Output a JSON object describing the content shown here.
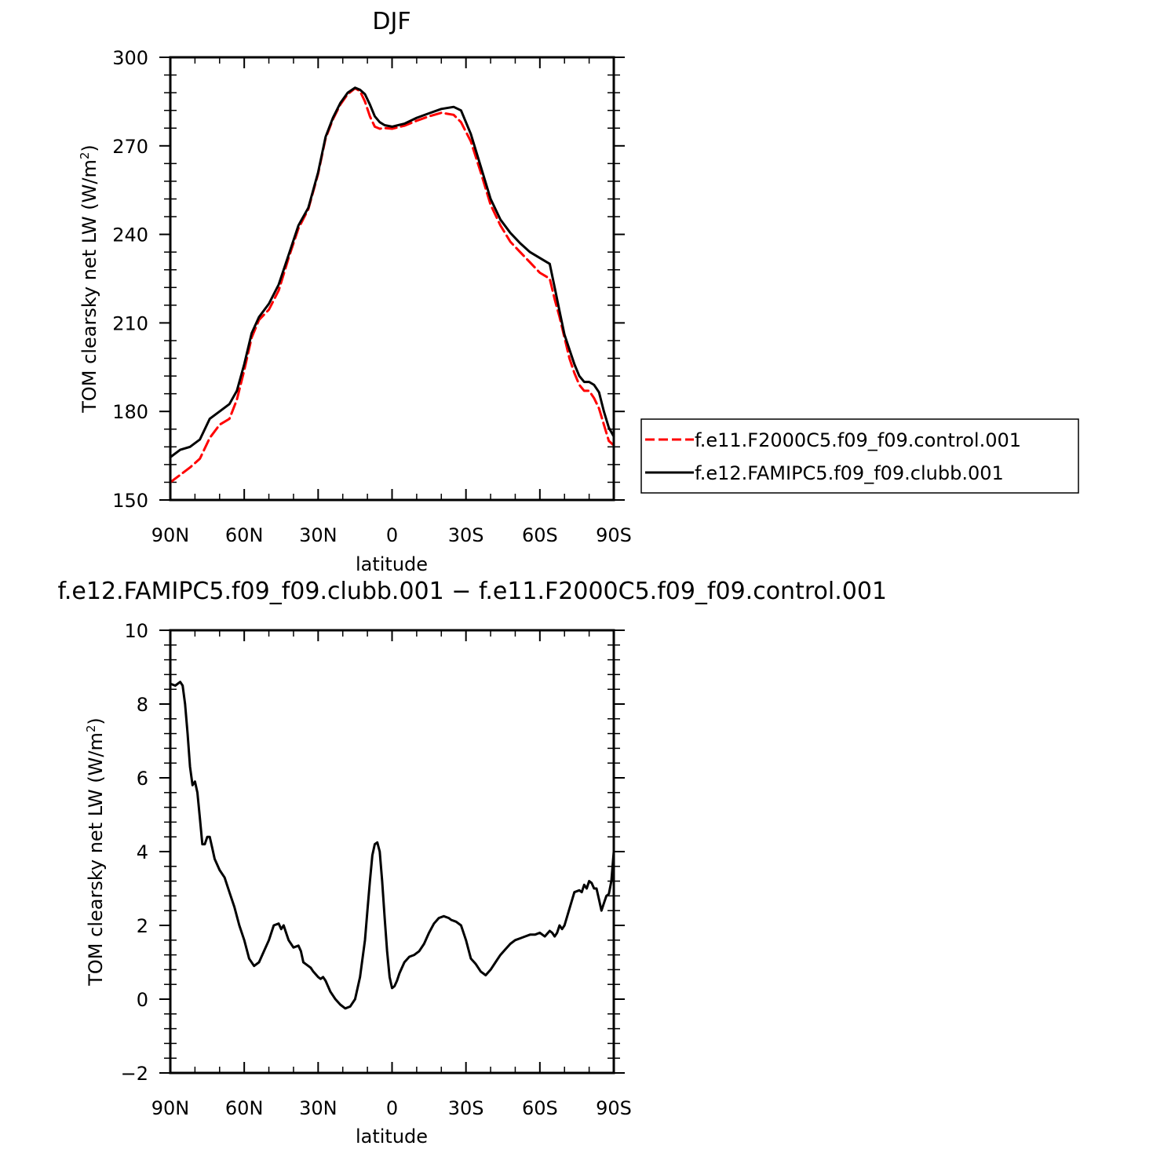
{
  "chart_data": [
    {
      "type": "line",
      "title": "DJF",
      "xlabel": "latitude",
      "ylabel": "TOM clearsky net LW (W/m²)",
      "xlim": [
        90,
        -90
      ],
      "ylim": [
        150,
        300
      ],
      "xticks": [
        90,
        60,
        30,
        0,
        -30,
        -60,
        -90
      ],
      "xticklabels": [
        "90N",
        "60N",
        "30N",
        "0",
        "30S",
        "60S",
        "90S"
      ],
      "yticks": [
        150,
        180,
        210,
        240,
        270,
        300
      ],
      "yticklabels": [
        "150",
        "180",
        "210",
        "240",
        "270",
        "300"
      ],
      "legend_position": "right",
      "series": [
        {
          "name": "f.e11.F2000C5.f09_f09.control.001",
          "color": "#ff0000",
          "dash": "dashed",
          "x": [
            90,
            86,
            82,
            78,
            74,
            70,
            66,
            63,
            60,
            57,
            54,
            50,
            46,
            42,
            38,
            34,
            30,
            27,
            24,
            21,
            18,
            15,
            13,
            11,
            9,
            7,
            5,
            3,
            0,
            -5,
            -10,
            -15,
            -20,
            -25,
            -28,
            -32,
            -36,
            -40,
            -44,
            -48,
            -52,
            -56,
            -60,
            -64,
            -66,
            -68,
            -70,
            -72,
            -74,
            -76,
            -78,
            -80,
            -82,
            -84,
            -86,
            -88,
            -90
          ],
          "y": [
            156,
            158.5,
            161,
            164,
            171,
            175.5,
            177.5,
            184,
            194,
            205,
            211,
            214.5,
            221,
            232,
            242,
            248.5,
            260.5,
            272.5,
            279,
            284,
            287.5,
            289.5,
            288.5,
            285,
            280,
            276.5,
            275.8,
            276,
            275.8,
            276.8,
            278.5,
            280,
            281.2,
            280.5,
            278,
            271.5,
            261,
            250,
            243,
            237.5,
            234,
            230.5,
            227,
            225,
            218,
            212,
            205,
            198,
            193,
            189,
            187,
            187,
            184.5,
            181,
            175.5,
            170,
            168.5
          ]
        },
        {
          "name": "f.e12.FAMIPC5.f09_f09.clubb.001",
          "color": "#000000",
          "dash": "solid",
          "x": [
            90,
            86,
            82,
            78,
            74,
            70,
            66,
            63,
            60,
            57,
            54,
            50,
            46,
            42,
            38,
            34,
            30,
            27,
            24,
            21,
            18,
            15,
            13,
            11,
            9,
            7,
            5,
            3,
            0,
            -5,
            -10,
            -15,
            -20,
            -25,
            -28,
            -32,
            -36,
            -40,
            -44,
            -48,
            -52,
            -56,
            -60,
            -64,
            -66,
            -68,
            -70,
            -72,
            -74,
            -76,
            -78,
            -80,
            -82,
            -84,
            -86,
            -88,
            -90
          ],
          "y": [
            164.5,
            167,
            168,
            170.5,
            177.5,
            180,
            182.5,
            187,
            196,
            206.5,
            212,
            216.5,
            223,
            233,
            243,
            249,
            261,
            273,
            279.5,
            284.5,
            288,
            289.7,
            289,
            287.5,
            284,
            280,
            278,
            277,
            276.5,
            277.5,
            279.5,
            281,
            282.5,
            283.2,
            282,
            274,
            263,
            252,
            245,
            240.5,
            237,
            234,
            232,
            230,
            222,
            214,
            206,
            201,
            196,
            192,
            190,
            190,
            189,
            186.5,
            180,
            174.5,
            171.5
          ]
        }
      ]
    },
    {
      "type": "line",
      "title": "f.e12.FAMIPC5.f09_f09.clubb.001 − f.e11.F2000C5.f09_f09.control.001",
      "xlabel": "latitude",
      "ylabel": "TOM clearsky net LW (W/m²)",
      "xlim": [
        90,
        -90
      ],
      "ylim": [
        -2,
        10
      ],
      "xticks": [
        90,
        60,
        30,
        0,
        -30,
        -60,
        -90
      ],
      "xticklabels": [
        "90N",
        "60N",
        "30N",
        "0",
        "30S",
        "60S",
        "90S"
      ],
      "yticks": [
        -2,
        0,
        2,
        4,
        6,
        8,
        10
      ],
      "yticklabels": [
        "−2",
        "0",
        "2",
        "4",
        "6",
        "8",
        "10"
      ],
      "series": [
        {
          "color": "#000000",
          "dash": "solid",
          "x": [
            90,
            88,
            86,
            85,
            84,
            83,
            82,
            81,
            80,
            79,
            78,
            77,
            76,
            75,
            74,
            73,
            72,
            70,
            68,
            66,
            64,
            62,
            60,
            58,
            56,
            54,
            52,
            50,
            48,
            46,
            45,
            44,
            43,
            42,
            40,
            38,
            37,
            36,
            35,
            34,
            33,
            32,
            30,
            29,
            28,
            27,
            25,
            23,
            21,
            19,
            17,
            15,
            13,
            11,
            10,
            9,
            8,
            7,
            6,
            5,
            4,
            3,
            2,
            1,
            0,
            -1,
            -2,
            -3,
            -5,
            -7,
            -9,
            -11,
            -13,
            -15,
            -17,
            -19,
            -21,
            -23,
            -24,
            -26,
            -28,
            -30,
            -32,
            -34,
            -36,
            -38,
            -40,
            -42,
            -44,
            -46,
            -48,
            -50,
            -52,
            -54,
            -56,
            -58,
            -60,
            -62,
            -64,
            -65,
            -66,
            -67,
            -68,
            -69,
            -70,
            -72,
            -74,
            -76,
            -77,
            -78,
            -79,
            -80,
            -81,
            -82,
            -83,
            -84,
            -85,
            -86,
            -87,
            -88,
            -89,
            -90
          ],
          "y": [
            8.55,
            8.5,
            8.6,
            8.5,
            8.0,
            7.2,
            6.3,
            5.8,
            5.9,
            5.6,
            4.9,
            4.2,
            4.2,
            4.4,
            4.4,
            4.1,
            3.8,
            3.5,
            3.3,
            2.9,
            2.5,
            2.0,
            1.6,
            1.1,
            0.9,
            1.0,
            1.3,
            1.6,
            2.0,
            2.05,
            1.9,
            2.0,
            1.8,
            1.6,
            1.4,
            1.45,
            1.3,
            1.0,
            0.95,
            0.9,
            0.85,
            0.75,
            0.6,
            0.55,
            0.6,
            0.5,
            0.2,
            0.0,
            -0.15,
            -0.25,
            -0.2,
            0.0,
            0.6,
            1.6,
            2.4,
            3.2,
            3.9,
            4.2,
            4.25,
            4.0,
            3.2,
            2.2,
            1.3,
            0.6,
            0.3,
            0.35,
            0.5,
            0.7,
            1.0,
            1.15,
            1.2,
            1.3,
            1.5,
            1.8,
            2.05,
            2.2,
            2.25,
            2.2,
            2.15,
            2.1,
            2.0,
            1.6,
            1.1,
            0.95,
            0.75,
            0.65,
            0.8,
            1.0,
            1.2,
            1.35,
            1.5,
            1.6,
            1.65,
            1.7,
            1.75,
            1.75,
            1.8,
            1.7,
            1.85,
            1.8,
            1.7,
            1.8,
            2.0,
            1.9,
            2.0,
            2.45,
            2.9,
            2.95,
            2.9,
            3.1,
            3.0,
            3.2,
            3.15,
            3.0,
            3.0,
            2.7,
            2.4,
            2.6,
            2.8,
            2.85,
            3.2,
            4.0
          ]
        }
      ]
    }
  ]
}
